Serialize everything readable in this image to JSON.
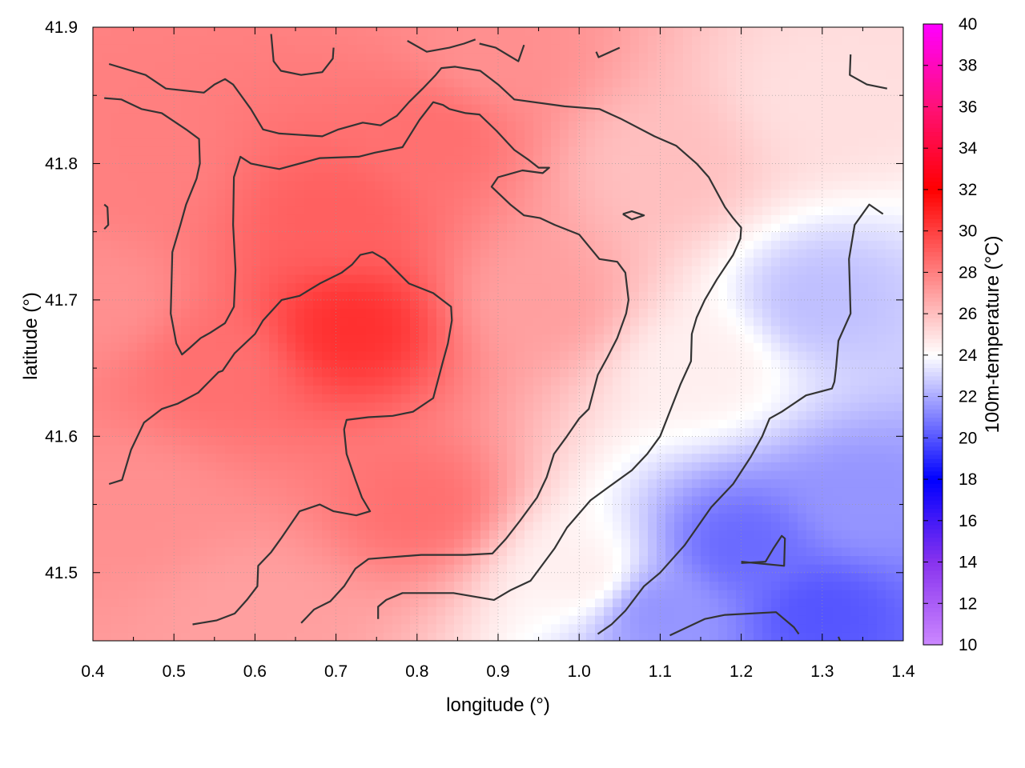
{
  "chart_data": {
    "type": "heatmap",
    "title": "",
    "xlabel": "longitude (°)",
    "ylabel": "latitude (°)",
    "colorbar_label": "100m-temperature (°C)",
    "xlim": [
      0.4,
      1.4
    ],
    "ylim": [
      41.45,
      41.9
    ],
    "x_ticks": [
      "0.4",
      "0.5",
      "0.6",
      "0.7",
      "0.8",
      "0.9",
      "1.0",
      "1.1",
      "1.2",
      "1.3",
      "1.4"
    ],
    "y_ticks": [
      "41.5",
      "41.6",
      "41.7",
      "41.8",
      "41.9"
    ],
    "colorbar_range": [
      10,
      40
    ],
    "colorbar_ticks": [
      "10",
      "12",
      "14",
      "16",
      "18",
      "20",
      "22",
      "24",
      "26",
      "28",
      "30",
      "32",
      "34",
      "36",
      "38",
      "40"
    ],
    "grid": true,
    "colormap": [
      {
        "value": 10,
        "color": "#cc88ff"
      },
      {
        "value": 14,
        "color": "#8833ee"
      },
      {
        "value": 18,
        "color": "#0000ff"
      },
      {
        "value": 24,
        "color": "#ffffff"
      },
      {
        "value": 32,
        "color": "#ff0000"
      },
      {
        "value": 36,
        "color": "#ff1177"
      },
      {
        "value": 40,
        "color": "#ff00ff"
      }
    ],
    "field_anchors": [
      {
        "x": 0.72,
        "y": 41.68,
        "t": 30.5
      },
      {
        "x": 0.7,
        "y": 41.76,
        "t": 29.0
      },
      {
        "x": 0.82,
        "y": 41.82,
        "t": 28.5
      },
      {
        "x": 0.55,
        "y": 41.65,
        "t": 28.5
      },
      {
        "x": 0.45,
        "y": 41.8,
        "t": 28.0
      },
      {
        "x": 0.45,
        "y": 41.55,
        "t": 27.5
      },
      {
        "x": 0.8,
        "y": 41.55,
        "t": 28.5
      },
      {
        "x": 0.95,
        "y": 41.7,
        "t": 27.0
      },
      {
        "x": 0.9,
        "y": 41.88,
        "t": 27.5
      },
      {
        "x": 1.1,
        "y": 41.8,
        "t": 26.0
      },
      {
        "x": 1.3,
        "y": 41.85,
        "t": 25.0
      },
      {
        "x": 1.15,
        "y": 41.65,
        "t": 24.5
      },
      {
        "x": 1.0,
        "y": 41.5,
        "t": 24.5
      },
      {
        "x": 1.3,
        "y": 41.7,
        "t": 22.5
      },
      {
        "x": 1.35,
        "y": 41.55,
        "t": 21.5
      },
      {
        "x": 1.2,
        "y": 41.52,
        "t": 20.5
      },
      {
        "x": 1.3,
        "y": 41.47,
        "t": 20.0
      },
      {
        "x": 1.1,
        "y": 41.47,
        "t": 21.5
      },
      {
        "x": 0.6,
        "y": 41.47,
        "t": 27.0
      },
      {
        "x": 0.41,
        "y": 41.7,
        "t": 27.5
      }
    ],
    "contours": [
      [
        [
          0.42,
          41.873
        ],
        [
          0.465,
          41.865
        ],
        [
          0.49,
          41.855
        ],
        [
          0.537,
          41.852
        ],
        [
          0.55,
          41.858
        ],
        [
          0.563,
          41.862
        ],
        [
          0.573,
          41.858
        ],
        [
          0.595,
          41.84
        ],
        [
          0.61,
          41.825
        ],
        [
          0.63,
          41.822
        ],
        [
          0.683,
          41.82
        ],
        [
          0.703,
          41.825
        ],
        [
          0.733,
          41.83
        ],
        [
          0.755,
          41.828
        ],
        [
          0.775,
          41.835
        ],
        [
          0.79,
          41.845
        ],
        [
          0.807,
          41.855
        ],
        [
          0.823,
          41.865
        ],
        [
          0.83,
          41.87
        ],
        [
          0.847,
          41.871
        ],
        [
          0.878,
          41.868
        ],
        [
          0.9,
          41.858
        ],
        [
          0.92,
          41.847
        ],
        [
          0.982,
          41.842
        ],
        [
          1.025,
          41.84
        ],
        [
          1.051,
          41.833
        ],
        [
          1.093,
          41.82
        ],
        [
          1.12,
          41.813
        ],
        [
          1.145,
          41.8
        ],
        [
          1.16,
          41.79
        ],
        [
          1.18,
          41.768
        ],
        [
          1.19,
          41.76
        ],
        [
          1.2,
          41.753
        ],
        [
          1.199,
          41.745
        ],
        [
          1.19,
          41.733
        ],
        [
          1.17,
          41.715
        ],
        [
          1.155,
          41.7
        ],
        [
          1.145,
          41.687
        ],
        [
          1.139,
          41.675
        ],
        [
          1.138,
          41.655
        ],
        [
          1.125,
          41.638
        ],
        [
          1.1,
          41.6
        ],
        [
          1.084,
          41.587
        ],
        [
          1.065,
          41.575
        ],
        [
          1.037,
          41.563
        ],
        [
          1.014,
          41.553
        ],
        [
          0.985,
          41.533
        ],
        [
          0.97,
          41.518
        ],
        [
          0.94,
          41.494
        ],
        [
          0.915,
          41.487
        ],
        [
          0.895,
          41.48
        ],
        [
          0.845,
          41.485
        ],
        [
          0.782,
          41.485
        ],
        [
          0.762,
          41.48
        ],
        [
          0.752,
          41.475
        ],
        [
          0.752,
          41.466
        ]
      ],
      [
        [
          0.414,
          41.848
        ],
        [
          0.435,
          41.847
        ],
        [
          0.46,
          41.84
        ],
        [
          0.485,
          41.837
        ],
        [
          0.515,
          41.825
        ],
        [
          0.531,
          41.818
        ],
        [
          0.532,
          41.8
        ],
        [
          0.528,
          41.789
        ],
        [
          0.515,
          41.77
        ],
        [
          0.508,
          41.755
        ],
        [
          0.498,
          41.735
        ],
        [
          0.496,
          41.69
        ],
        [
          0.503,
          41.668
        ],
        [
          0.51,
          41.66
        ],
        [
          0.52,
          41.665
        ],
        [
          0.533,
          41.672
        ],
        [
          0.545,
          41.676
        ],
        [
          0.563,
          41.683
        ],
        [
          0.574,
          41.695
        ],
        [
          0.576,
          41.722
        ],
        [
          0.573,
          41.755
        ],
        [
          0.574,
          41.79
        ],
        [
          0.582,
          41.805
        ],
        [
          0.595,
          41.8
        ],
        [
          0.612,
          41.798
        ],
        [
          0.63,
          41.796
        ],
        [
          0.68,
          41.804
        ],
        [
          0.728,
          41.805
        ],
        [
          0.748,
          41.808
        ],
        [
          0.782,
          41.812
        ],
        [
          0.803,
          41.832
        ],
        [
          0.82,
          41.845
        ],
        [
          0.832,
          41.843
        ],
        [
          0.84,
          41.84
        ],
        [
          0.86,
          41.837
        ],
        [
          0.877,
          41.836
        ],
        [
          0.898,
          41.824
        ],
        [
          0.92,
          41.81
        ],
        [
          0.937,
          41.803
        ],
        [
          0.95,
          41.797
        ],
        [
          0.963,
          41.797
        ],
        [
          0.955,
          41.793
        ],
        [
          0.93,
          41.795
        ],
        [
          0.9,
          41.79
        ],
        [
          0.892,
          41.783
        ],
        [
          0.915,
          41.77
        ],
        [
          0.932,
          41.762
        ],
        [
          0.952,
          41.76
        ],
        [
          0.97,
          41.755
        ],
        [
          1.0,
          41.748
        ],
        [
          1.025,
          41.73
        ],
        [
          1.047,
          41.728
        ],
        [
          1.057,
          41.72
        ],
        [
          1.061,
          41.7
        ],
        [
          1.058,
          41.69
        ],
        [
          1.047,
          41.672
        ],
        [
          1.035,
          41.658
        ],
        [
          1.023,
          41.645
        ],
        [
          1.012,
          41.62
        ],
        [
          1.0,
          41.613
        ],
        [
          0.985,
          41.6
        ],
        [
          0.969,
          41.587
        ],
        [
          0.96,
          41.57
        ],
        [
          0.948,
          41.555
        ],
        [
          0.927,
          41.538
        ],
        [
          0.91,
          41.525
        ],
        [
          0.893,
          41.514
        ],
        [
          0.86,
          41.513
        ],
        [
          0.805,
          41.513
        ],
        [
          0.74,
          41.51
        ],
        [
          0.724,
          41.503
        ],
        [
          0.71,
          41.49
        ],
        [
          0.693,
          41.479
        ],
        [
          0.673,
          41.473
        ],
        [
          0.657,
          41.463
        ]
      ],
      [
        [
          0.42,
          41.565
        ],
        [
          0.436,
          41.568
        ],
        [
          0.447,
          41.59
        ],
        [
          0.463,
          41.61
        ],
        [
          0.485,
          41.62
        ],
        [
          0.505,
          41.624
        ],
        [
          0.53,
          41.632
        ],
        [
          0.545,
          41.641
        ],
        [
          0.555,
          41.647
        ],
        [
          0.56,
          41.648
        ],
        [
          0.575,
          41.661
        ],
        [
          0.6,
          41.675
        ],
        [
          0.61,
          41.685
        ],
        [
          0.633,
          41.7
        ],
        [
          0.655,
          41.703
        ],
        [
          0.68,
          41.712
        ],
        [
          0.707,
          41.72
        ],
        [
          0.72,
          41.726
        ],
        [
          0.73,
          41.733
        ],
        [
          0.745,
          41.735
        ],
        [
          0.76,
          41.73
        ],
        [
          0.79,
          41.712
        ],
        [
          0.82,
          41.705
        ],
        [
          0.842,
          41.695
        ],
        [
          0.843,
          41.685
        ],
        [
          0.838,
          41.668
        ],
        [
          0.832,
          41.655
        ],
        [
          0.82,
          41.628
        ],
        [
          0.795,
          41.618
        ],
        [
          0.77,
          41.615
        ],
        [
          0.74,
          41.614
        ],
        [
          0.713,
          41.612
        ],
        [
          0.71,
          41.605
        ],
        [
          0.713,
          41.587
        ],
        [
          0.724,
          41.568
        ],
        [
          0.732,
          41.555
        ],
        [
          0.742,
          41.545
        ],
        [
          0.725,
          41.542
        ],
        [
          0.697,
          41.545
        ],
        [
          0.68,
          41.55
        ],
        [
          0.655,
          41.545
        ],
        [
          0.632,
          41.525
        ],
        [
          0.62,
          41.515
        ],
        [
          0.604,
          41.505
        ],
        [
          0.603,
          41.49
        ],
        [
          0.59,
          41.48
        ],
        [
          0.575,
          41.47
        ],
        [
          0.553,
          41.465
        ],
        [
          0.523,
          41.462
        ]
      ],
      [
        [
          0.62,
          41.895
        ],
        [
          0.623,
          41.875
        ],
        [
          0.632,
          41.868
        ],
        [
          0.657,
          41.865
        ],
        [
          0.683,
          41.867
        ],
        [
          0.696,
          41.877
        ],
        [
          0.697,
          41.885
        ]
      ],
      [
        [
          0.788,
          41.89
        ],
        [
          0.812,
          41.882
        ],
        [
          0.84,
          41.885
        ],
        [
          0.858,
          41.888
        ],
        [
          0.872,
          41.891
        ]
      ],
      [
        [
          0.877,
          41.888
        ],
        [
          0.897,
          41.885
        ],
        [
          0.925,
          41.875
        ],
        [
          0.932,
          41.887
        ]
      ],
      [
        [
          1.021,
          41.882
        ],
        [
          1.024,
          41.878
        ],
        [
          1.05,
          41.885
        ]
      ],
      [
        [
          1.335,
          41.88
        ],
        [
          1.334,
          41.865
        ],
        [
          1.355,
          41.858
        ],
        [
          1.38,
          41.855
        ]
      ],
      [
        [
          0.414,
          41.77
        ],
        [
          0.418,
          41.768
        ],
        [
          0.419,
          41.755
        ],
        [
          0.414,
          41.752
        ]
      ],
      [
        [
          1.054,
          41.763
        ],
        [
          1.065,
          41.765
        ],
        [
          1.08,
          41.762
        ],
        [
          1.065,
          41.759
        ],
        [
          1.054,
          41.763
        ]
      ],
      [
        [
          1.375,
          41.763
        ],
        [
          1.358,
          41.77
        ],
        [
          1.34,
          41.755
        ],
        [
          1.333,
          41.73
        ],
        [
          1.335,
          41.69
        ],
        [
          1.32,
          41.67
        ],
        [
          1.317,
          41.65
        ],
        [
          1.315,
          41.64
        ],
        [
          1.312,
          41.635
        ],
        [
          1.28,
          41.63
        ],
        [
          1.25,
          41.618
        ],
        [
          1.235,
          41.613
        ],
        [
          1.226,
          41.6
        ],
        [
          1.212,
          41.585
        ],
        [
          1.19,
          41.565
        ],
        [
          1.163,
          41.548
        ],
        [
          1.13,
          41.52
        ],
        [
          1.1,
          41.5
        ],
        [
          1.08,
          41.49
        ],
        [
          1.057,
          41.472
        ],
        [
          1.04,
          41.462
        ],
        [
          1.023,
          41.455
        ]
      ],
      [
        [
          1.2,
          41.507
        ],
        [
          1.23,
          41.508
        ],
        [
          1.24,
          41.518
        ],
        [
          1.25,
          41.527
        ],
        [
          1.254,
          41.525
        ],
        [
          1.253,
          41.505
        ],
        [
          1.2,
          41.508
        ]
      ],
      [
        [
          1.112,
          41.454
        ],
        [
          1.155,
          41.466
        ],
        [
          1.18,
          41.469
        ],
        [
          1.243,
          41.471
        ],
        [
          1.265,
          41.46
        ],
        [
          1.271,
          41.455
        ]
      ],
      [
        [
          1.32,
          41.453
        ],
        [
          1.322,
          41.45
        ]
      ]
    ]
  }
}
